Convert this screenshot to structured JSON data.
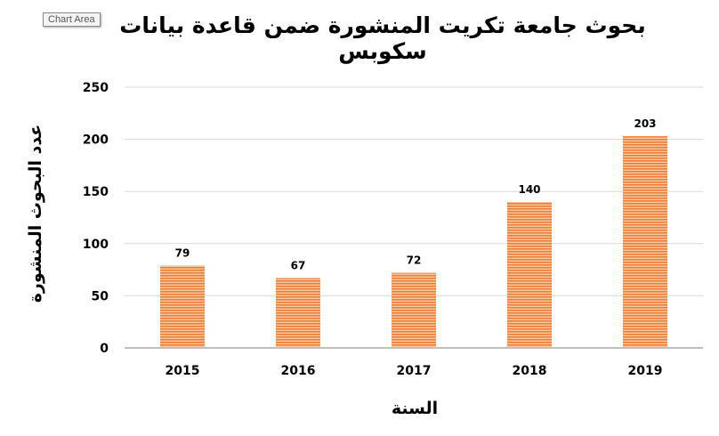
{
  "tooltip": "Chart Area",
  "chart_data": {
    "type": "bar",
    "title": "بحوث جامعة تكريت المنشورة ضمن قاعدة بيانات سكوبس",
    "xlabel": "السنة",
    "ylabel": "عدد البحوث المنشورة",
    "categories": [
      "2015",
      "2016",
      "2017",
      "2018",
      "2019"
    ],
    "values": [
      79,
      67,
      72,
      140,
      203
    ],
    "ylim": [
      0,
      250
    ],
    "yticks": [
      0,
      50,
      100,
      150,
      200,
      250
    ],
    "grid": true,
    "bar_color": "#ED7D31",
    "data_labels": true
  }
}
